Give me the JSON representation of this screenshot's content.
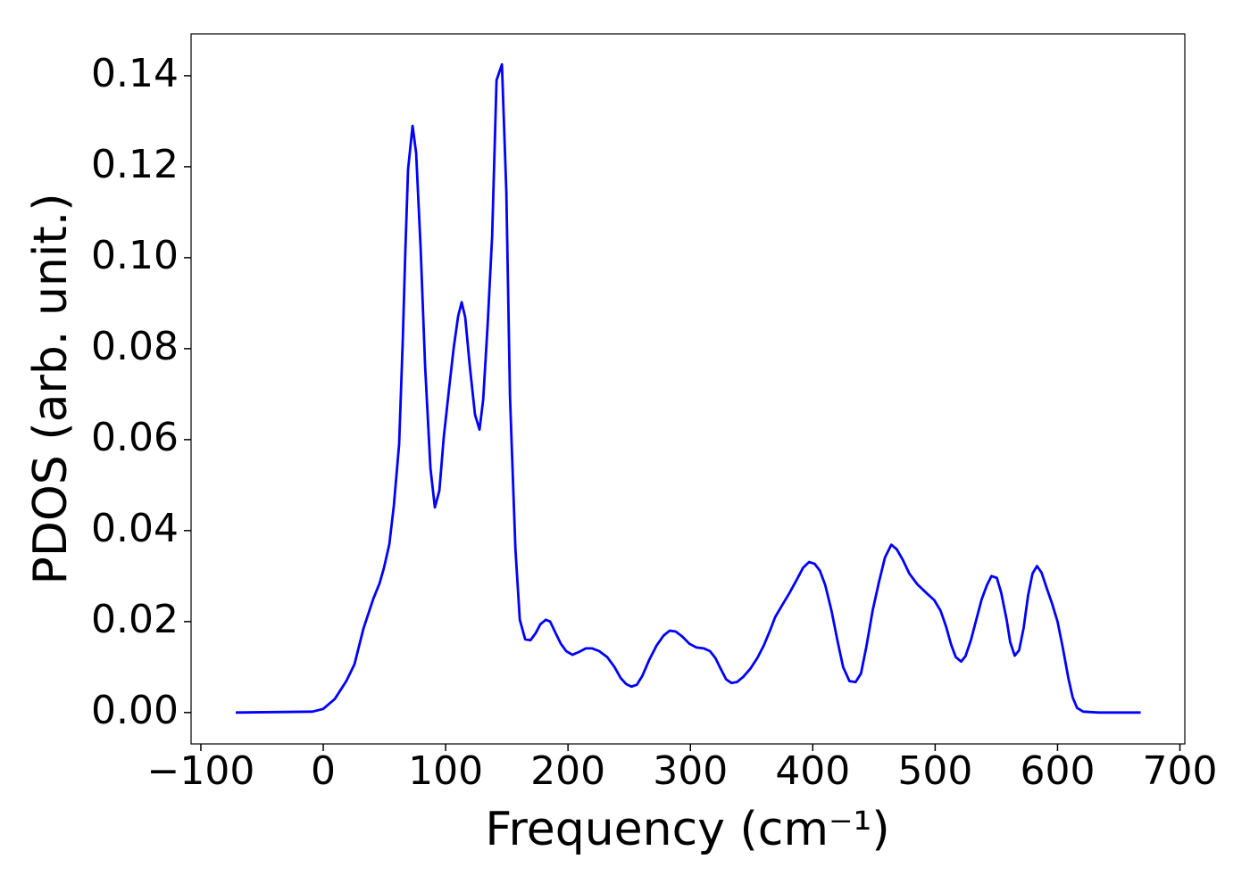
{
  "chart_data": {
    "type": "line",
    "x_label": "Frequency (cm⁻¹)",
    "y_label": "PDOS (arb. unit.)",
    "xlim": [
      -108,
      704
    ],
    "ylim": [
      -0.0069,
      0.1492
    ],
    "xticks": [
      {
        "value": -100,
        "label": "−100"
      },
      0,
      100,
      200,
      300,
      400,
      500,
      600,
      700
    ],
    "yticks": [
      {
        "value": 0,
        "label": "0.00"
      },
      {
        "value": 0.02,
        "label": "0.02"
      },
      {
        "value": 0.04,
        "label": "0.04"
      },
      {
        "value": 0.06,
        "label": "0.06"
      },
      {
        "value": 0.08,
        "label": "0.08"
      },
      {
        "value": 0.1,
        "label": "0.10"
      },
      {
        "value": 0.12,
        "label": "0.12"
      },
      {
        "value": 0.14,
        "label": "0.14"
      }
    ],
    "grid": false,
    "x": [
      -71.5,
      -8.8,
      0,
      9.5,
      19,
      25.5,
      32.8,
      40.9,
      46,
      49.6,
      54,
      57.7,
      62,
      65,
      67,
      69.3,
      73,
      75.9,
      79.6,
      83.2,
      87.6,
      91.2,
      94.9,
      98.5,
      102.9,
      106.6,
      110.2,
      113.1,
      116,
      119.7,
      124,
      127.7,
      130.7,
      134.3,
      138,
      141.6,
      146,
      149.6,
      152.6,
      157,
      160.6,
      165,
      169.3,
      173.7,
      177.4,
      181.8,
      185.4,
      189.8,
      194.2,
      198.5,
      203.6,
      208.8,
      214.6,
      219.7,
      225.5,
      232,
      238,
      243,
      247.4,
      251.8,
      256.2,
      260.6,
      266.4,
      272.3,
      278,
      283,
      288,
      293.4,
      299.3,
      305,
      311,
      316,
      320.4,
      324.8,
      329.2,
      333.6,
      338,
      343,
      348.9,
      354.7,
      359.9,
      365,
      369.3,
      375.2,
      381,
      386.9,
      392,
      397,
      401.5,
      405.8,
      410.2,
      415.3,
      420.4,
      424.8,
      430,
      435,
      439.4,
      443.8,
      448.9,
      454,
      459,
      464.2,
      468.6,
      473.7,
      478.8,
      485.4,
      492,
      499.3,
      504.4,
      508.8,
      513.1,
      516.8,
      521.2,
      524.8,
      529.2,
      533.6,
      538,
      542.3,
      546,
      550.4,
      554,
      558.4,
      561.3,
      565,
      568.6,
      572.3,
      575.9,
      579.6,
      583.2,
      586.9,
      591.2,
      595.6,
      600,
      604.4,
      608.8,
      612.4,
      616,
      621,
      633.6,
      667.9
    ],
    "series": [
      {
        "name": "PDOS",
        "color": "#0000ff",
        "values": [
          0,
          0.0002,
          0.0008,
          0.003,
          0.007,
          0.0106,
          0.0184,
          0.025,
          0.0284,
          0.0318,
          0.037,
          0.0455,
          0.059,
          0.082,
          0.1008,
          0.1194,
          0.129,
          0.123,
          0.102,
          0.0763,
          0.0537,
          0.0451,
          0.0488,
          0.0606,
          0.0714,
          0.0802,
          0.0871,
          0.0902,
          0.0869,
          0.0763,
          0.0655,
          0.0622,
          0.0688,
          0.0851,
          0.1047,
          0.139,
          0.1425,
          0.1145,
          0.0694,
          0.0361,
          0.0204,
          0.0161,
          0.0159,
          0.0175,
          0.0194,
          0.0204,
          0.02,
          0.0175,
          0.0151,
          0.0135,
          0.0127,
          0.0133,
          0.0141,
          0.0141,
          0.0135,
          0.0122,
          0.01,
          0.0076,
          0.0063,
          0.0057,
          0.0061,
          0.008,
          0.0116,
          0.0147,
          0.0169,
          0.018,
          0.0178,
          0.0167,
          0.0151,
          0.0143,
          0.0141,
          0.0135,
          0.012,
          0.0096,
          0.0073,
          0.0065,
          0.0067,
          0.0078,
          0.0096,
          0.012,
          0.0147,
          0.018,
          0.021,
          0.0237,
          0.0263,
          0.0292,
          0.0318,
          0.0331,
          0.0327,
          0.0312,
          0.028,
          0.0224,
          0.0155,
          0.01,
          0.0069,
          0.0067,
          0.0086,
          0.0145,
          0.0224,
          0.0286,
          0.0341,
          0.0369,
          0.0359,
          0.0335,
          0.0306,
          0.0282,
          0.0265,
          0.0247,
          0.0224,
          0.019,
          0.0149,
          0.0122,
          0.0112,
          0.0124,
          0.0159,
          0.0204,
          0.0249,
          0.028,
          0.03,
          0.0296,
          0.0263,
          0.0204,
          0.0155,
          0.0125,
          0.0137,
          0.0186,
          0.0257,
          0.0306,
          0.0322,
          0.0308,
          0.0273,
          0.0239,
          0.02,
          0.0141,
          0.0076,
          0.0033,
          0.001,
          0.0002,
          0,
          0
        ]
      }
    ]
  }
}
